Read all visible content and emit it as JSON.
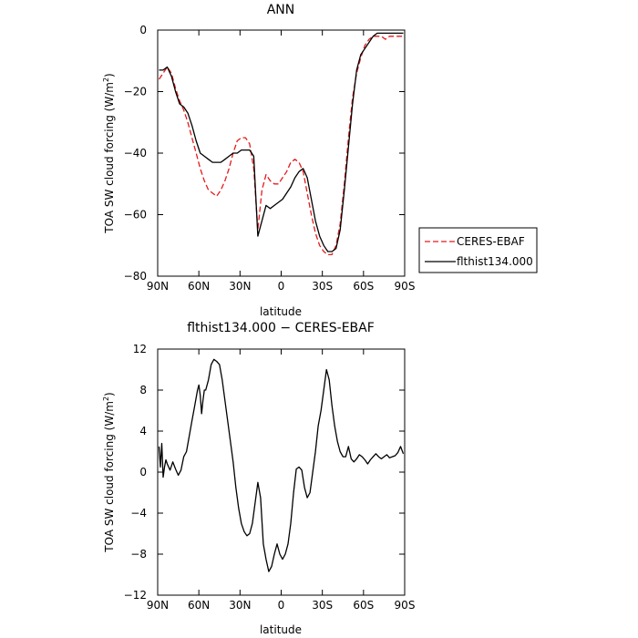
{
  "chart_data": [
    {
      "type": "line",
      "title": "ANN",
      "xlabel": "latitude",
      "ylabel": "TOA SW cloud forcing (W/m",
      "ylabel_sup": "2",
      "ylabel_close": ")",
      "xlim": [
        90,
        -90
      ],
      "ylim": [
        -80,
        0
      ],
      "xticks": [
        90,
        60,
        30,
        0,
        -30,
        -60,
        -90
      ],
      "xtick_labels": [
        "90N",
        "60N",
        "30N",
        "0",
        "30S",
        "60S",
        "90S"
      ],
      "yticks": [
        0,
        -20,
        -40,
        -60,
        -80
      ],
      "ytick_labels": [
        "0",
        "−20",
        "−40",
        "−60",
        "−80"
      ],
      "legend": "right",
      "series": [
        {
          "name": "CERES-EBAF",
          "color": "#e41a1c",
          "dash": "dashed",
          "x": [
            89,
            86,
            83,
            80,
            77,
            74,
            71,
            68,
            65,
            62,
            59,
            56,
            53,
            50,
            47,
            44,
            41,
            38,
            35,
            32,
            29,
            26,
            23,
            20,
            17,
            14,
            11,
            8,
            5,
            2,
            -1,
            -4,
            -7,
            -10,
            -13,
            -16,
            -19,
            -22,
            -25,
            -28,
            -31,
            -34,
            -37,
            -40,
            -43,
            -46,
            -49,
            -52,
            -55,
            -58,
            -61,
            -64,
            -67,
            -70,
            -73,
            -76,
            -79,
            -82,
            -85,
            -88,
            -89
          ],
          "y": [
            -16,
            -14,
            -12,
            -14,
            -19,
            -23,
            -26,
            -30,
            -35,
            -40,
            -45,
            -49,
            -52,
            -53,
            -54,
            -52,
            -49,
            -45,
            -40,
            -36,
            -35,
            -35,
            -37,
            -45,
            -65,
            -52,
            -47,
            -49,
            -50,
            -50,
            -48,
            -46,
            -43,
            -42,
            -43,
            -46,
            -53,
            -60,
            -66,
            -70,
            -72,
            -73,
            -73,
            -70,
            -63,
            -50,
            -35,
            -22,
            -14,
            -9,
            -5,
            -3,
            -2,
            -2,
            -2,
            -3,
            -2,
            -2,
            -2,
            -2,
            -2
          ]
        },
        {
          "name": "flthist134.000",
          "color": "#000000",
          "dash": "solid",
          "x": [
            89,
            86,
            83,
            80,
            77,
            74,
            71,
            68,
            65,
            62,
            59,
            56,
            53,
            50,
            47,
            44,
            41,
            38,
            35,
            32,
            29,
            26,
            23,
            20,
            17,
            14,
            11,
            8,
            5,
            2,
            -1,
            -4,
            -7,
            -10,
            -13,
            -16,
            -19,
            -22,
            -25,
            -28,
            -31,
            -34,
            -37,
            -40,
            -43,
            -46,
            -49,
            -52,
            -55,
            -58,
            -61,
            -64,
            -67,
            -70,
            -73,
            -76,
            -79,
            -82,
            -85,
            -88,
            -89
          ],
          "y": [
            -13,
            -13,
            -12,
            -15,
            -20,
            -24,
            -25,
            -27,
            -31,
            -36,
            -40,
            -41,
            -42,
            -43,
            -43,
            -43,
            -42,
            -41,
            -40,
            -40,
            -39,
            -39,
            -39,
            -41,
            -67,
            -62,
            -57,
            -58,
            -57,
            -56,
            -55,
            -53,
            -51,
            -48,
            -46,
            -45,
            -48,
            -55,
            -62,
            -67,
            -70,
            -72,
            -72,
            -71,
            -65,
            -52,
            -38,
            -24,
            -13,
            -8,
            -6,
            -4,
            -2,
            -1,
            -1,
            -1,
            -1,
            -1,
            -1,
            -1,
            -1
          ]
        }
      ]
    },
    {
      "type": "line",
      "title": "flthist134.000 − CERES-EBAF",
      "xlabel": "latitude",
      "ylabel": "TOA SW cloud forcing (W/m",
      "ylabel_sup": "2",
      "ylabel_close": ")",
      "xlim": [
        90,
        -90
      ],
      "ylim": [
        -12,
        12
      ],
      "xticks": [
        90,
        60,
        30,
        0,
        -30,
        -60,
        -90
      ],
      "xtick_labels": [
        "90N",
        "60N",
        "30N",
        "0",
        "30S",
        "60S",
        "90S"
      ],
      "yticks": [
        12,
        8,
        4,
        0,
        -4,
        -8,
        -12
      ],
      "ytick_labels": [
        "12",
        "8",
        "4",
        "0",
        "−4",
        "−8",
        "−12"
      ],
      "series": [
        {
          "color": "#000000",
          "dash": "solid",
          "x": [
            89,
            88,
            87,
            86,
            85,
            84,
            83,
            81,
            79,
            77,
            75,
            73,
            71,
            69,
            67,
            65,
            63,
            61,
            60,
            59,
            58,
            57,
            56,
            55,
            53,
            51,
            49,
            47,
            45,
            43,
            41,
            39,
            37,
            35,
            33,
            31,
            29,
            27,
            25,
            23,
            21,
            19,
            17,
            15,
            13,
            11,
            9,
            7,
            5,
            3,
            1,
            -1,
            -3,
            -5,
            -7,
            -9,
            -11,
            -13,
            -15,
            -17,
            -19,
            -21,
            -23,
            -25,
            -27,
            -29,
            -31,
            -33,
            -35,
            -37,
            -39,
            -41,
            -43,
            -45,
            -47,
            -49,
            -51,
            -53,
            -55,
            -57,
            -59,
            -61,
            -63,
            -65,
            -67,
            -69,
            -71,
            -73,
            -75,
            -77,
            -79,
            -81,
            -83,
            -85,
            -87,
            -89
          ],
          "y": [
            2.5,
            0.5,
            2.8,
            -0.5,
            0.5,
            1.2,
            0.8,
            0.2,
            1.0,
            0.3,
            -0.3,
            0.2,
            1.5,
            2.0,
            3.5,
            5.0,
            6.5,
            8.0,
            8.5,
            7.5,
            5.7,
            7.0,
            8.0,
            8.0,
            9.0,
            10.5,
            11.0,
            10.8,
            10.5,
            9.0,
            7.0,
            5.0,
            3.0,
            1.0,
            -1.5,
            -3.5,
            -5.0,
            -5.8,
            -6.2,
            -6.0,
            -5.0,
            -3.0,
            -1.0,
            -2.5,
            -7.0,
            -8.5,
            -9.7,
            -9.2,
            -8.0,
            -7.0,
            -8.0,
            -8.5,
            -8.0,
            -7.0,
            -5.0,
            -2.0,
            0.3,
            0.5,
            0.2,
            -1.5,
            -2.5,
            -2.0,
            0.0,
            2.0,
            4.5,
            6.0,
            8.0,
            10.0,
            9.0,
            6.5,
            4.5,
            3.0,
            2.0,
            1.5,
            1.5,
            2.5,
            1.3,
            1.0,
            1.3,
            1.7,
            1.5,
            1.2,
            0.8,
            1.2,
            1.5,
            1.8,
            1.5,
            1.3,
            1.5,
            1.7,
            1.4,
            1.5,
            1.6,
            1.9,
            2.5,
            1.8
          ]
        }
      ]
    }
  ]
}
